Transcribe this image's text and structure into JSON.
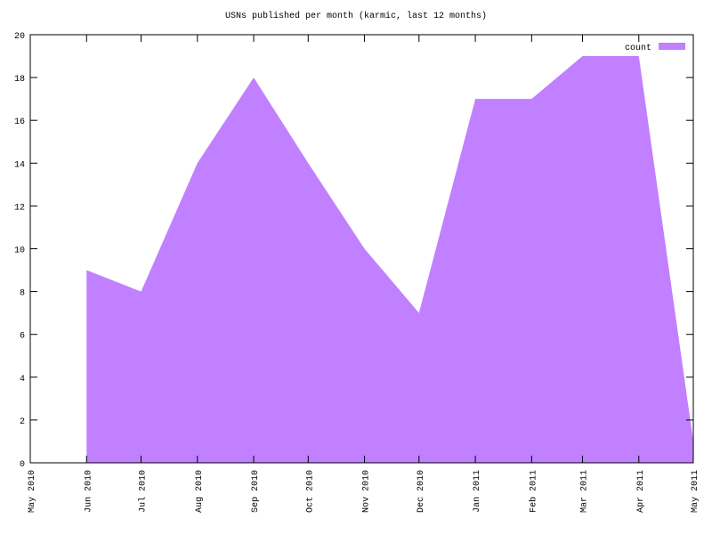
{
  "chart_data": {
    "type": "area",
    "title": "USNs published per month (karmic, last 12 months)",
    "x": [
      "2010-06",
      "2010-07",
      "2010-08",
      "2010-09",
      "2010-10",
      "2010-11",
      "2010-12",
      "2011-01",
      "2011-02",
      "2011-03",
      "2011-04",
      "2011-05"
    ],
    "series": [
      {
        "name": "count",
        "color": "#c080ff",
        "values": [
          9,
          8,
          14,
          18,
          14,
          10,
          7,
          17,
          17,
          19,
          19,
          1
        ]
      }
    ],
    "xlim": [
      "2010-05",
      "2011-05"
    ],
    "xticks": [
      {
        "value": "2010-05",
        "label": "May 2010"
      },
      {
        "value": "2010-06",
        "label": "Jun 2010"
      },
      {
        "value": "2010-07",
        "label": "Jul 2010"
      },
      {
        "value": "2010-08",
        "label": "Aug 2010"
      },
      {
        "value": "2010-09",
        "label": "Sep 2010"
      },
      {
        "value": "2010-10",
        "label": "Oct 2010"
      },
      {
        "value": "2010-11",
        "label": "Nov 2010"
      },
      {
        "value": "2010-12",
        "label": "Dec 2010"
      },
      {
        "value": "2011-01",
        "label": "Jan 2011"
      },
      {
        "value": "2011-02",
        "label": "Feb 2011"
      },
      {
        "value": "2011-03",
        "label": "Mar 2011"
      },
      {
        "value": "2011-04",
        "label": "Apr 2011"
      },
      {
        "value": "2011-05",
        "label": "May 2011"
      }
    ],
    "ylim": [
      0,
      20
    ],
    "yticks": [
      0,
      2,
      4,
      6,
      8,
      10,
      12,
      14,
      16,
      18,
      20
    ],
    "legend": "top-right"
  }
}
